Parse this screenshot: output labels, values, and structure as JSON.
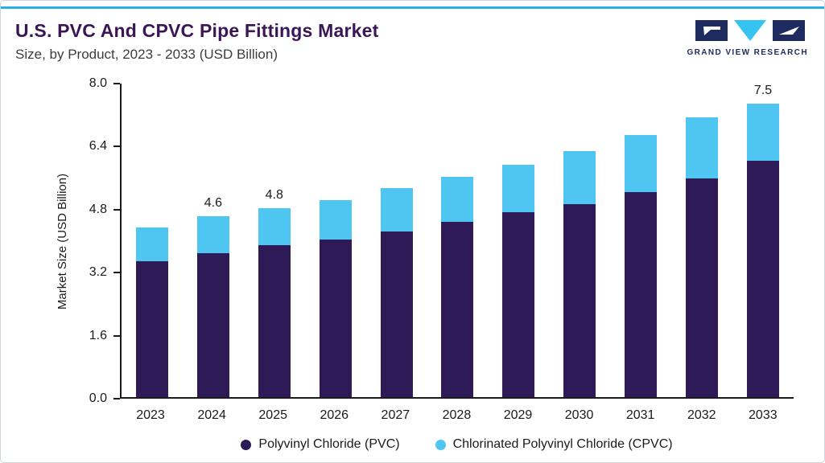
{
  "header": {
    "title": "U.S. PVC And CPVC Pipe Fittings Market",
    "subtitle": "Size, by Product, 2023 - 2033 (USD Billion)",
    "logo_text": "GRAND VIEW RESEARCH"
  },
  "colors": {
    "accent_line": "#2ab2e8",
    "title": "#3b1657",
    "pvc": "#2e1a56",
    "cpvc": "#4fc5f1",
    "axis": "#1a1a1a",
    "logo_navy": "#1d2b5f",
    "logo_cyan": "#35c4f0"
  },
  "chart_data": {
    "type": "bar",
    "stacked": true,
    "title": "U.S. PVC And CPVC Pipe Fittings Market",
    "subtitle": "Size, by Product, 2023 - 2033 (USD Billion)",
    "xlabel": "",
    "ylabel": "Market Size (USD Billion)",
    "ylim": [
      0,
      8.0
    ],
    "yticks": [
      0.0,
      1.6,
      3.2,
      4.8,
      6.4,
      8.0
    ],
    "grid": false,
    "legend_position": "bottom",
    "categories": [
      "2023",
      "2024",
      "2025",
      "2026",
      "2027",
      "2028",
      "2029",
      "2030",
      "2031",
      "2032",
      "2033"
    ],
    "series": [
      {
        "name": "Polyvinyl Chloride (PVC)",
        "color": "#2e1a56",
        "values": [
          3.45,
          3.65,
          3.85,
          4.0,
          4.2,
          4.45,
          4.7,
          4.9,
          5.2,
          5.55,
          6.05
        ]
      },
      {
        "name": "Chlorinated Polyvinyl Chloride (CPVC)",
        "color": "#4fc5f1",
        "values": [
          0.85,
          0.95,
          0.95,
          1.0,
          1.1,
          1.15,
          1.2,
          1.35,
          1.45,
          1.55,
          1.45
        ]
      }
    ],
    "totals": [
      4.3,
      4.6,
      4.8,
      5.0,
      5.3,
      5.6,
      5.9,
      6.25,
      6.65,
      7.1,
      7.5
    ],
    "bar_labels": [
      "",
      "4.6",
      "4.8",
      "",
      "",
      "",
      "",
      "",
      "",
      "",
      "7.5"
    ]
  }
}
